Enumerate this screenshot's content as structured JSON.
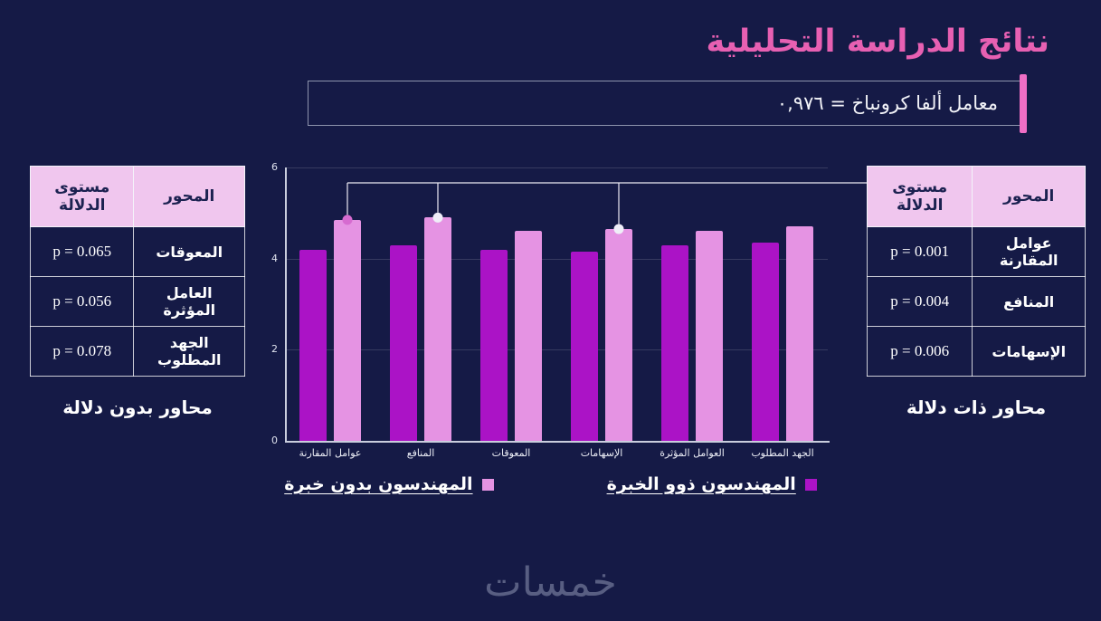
{
  "title": "نتائج الدراسة التحليلية",
  "alpha_box": {
    "text": "معامل ألفا كرونباخ =  ٠,٩٧٦"
  },
  "left_table": {
    "headers": {
      "axis": "المحور",
      "significance": "مستوى الدلالة"
    },
    "rows": [
      {
        "axis": "المعوقات",
        "p": "p = 0.065"
      },
      {
        "axis": "العامل المؤثرة",
        "p": "p = 0.056"
      },
      {
        "axis": "الجهد المطلوب",
        "p": "p = 0.078"
      }
    ],
    "caption": "محاور بدون دلالة"
  },
  "right_table": {
    "headers": {
      "axis": "المحور",
      "significance": "مستوى الدلالة"
    },
    "rows": [
      {
        "axis": "عوامل المقارنة",
        "p": "p = 0.001"
      },
      {
        "axis": "المنافع",
        "p": "p = 0.004"
      },
      {
        "axis": "الإسهامات",
        "p": "p = 0.006"
      }
    ],
    "caption": "محاور ذات دلالة"
  },
  "chart_data": {
    "type": "bar",
    "categories": [
      "عوامل المقارنة",
      "المنافع",
      "المعوقات",
      "الإسهامات",
      "العوامل المؤثرة",
      "الجهد المطلوب"
    ],
    "series": [
      {
        "name": "المهندسون ذوو الخبرة",
        "color": "#ab13c6",
        "values": [
          4.2,
          4.3,
          4.2,
          4.15,
          4.3,
          4.35
        ]
      },
      {
        "name": "المهندسون بدون خبرة",
        "color": "#e593e3",
        "values": [
          4.85,
          4.9,
          4.6,
          4.65,
          4.6,
          4.7
        ]
      }
    ],
    "ylim": [
      0,
      6
    ],
    "yticks": [
      0,
      2,
      4,
      6
    ],
    "grid": true,
    "legend_position": "bottom",
    "significance_markers": [
      {
        "category": 0,
        "series": 1,
        "color": "#d66bd0"
      },
      {
        "category": 1,
        "series": 1,
        "color": "#efeef8"
      },
      {
        "category": 3,
        "series": 1,
        "color": "#efeef8"
      }
    ]
  },
  "watermark": "خمسات",
  "colors": {
    "background": "#151a46",
    "accent_pink": "#e760b2",
    "table_header": "#f0c6ee",
    "bar_dark": "#ab13c6",
    "bar_light": "#e593e3"
  }
}
